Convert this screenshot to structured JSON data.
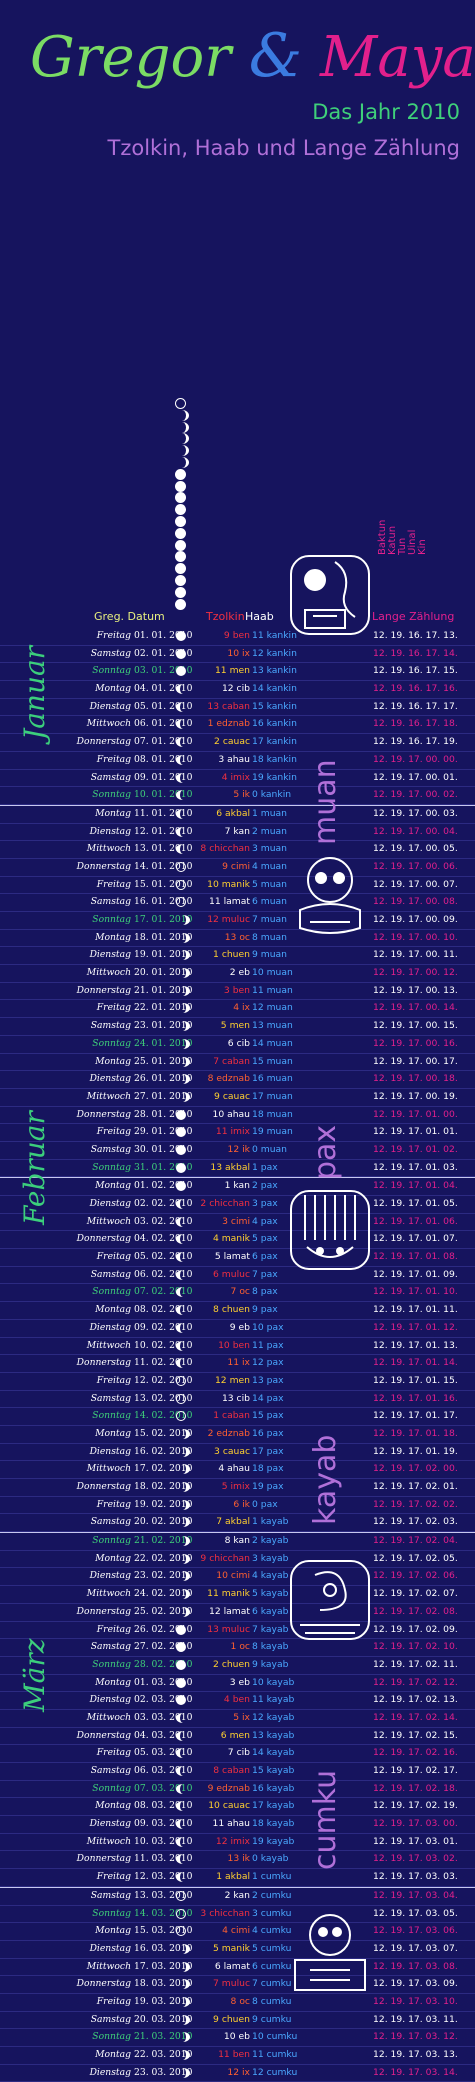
{
  "header": {
    "name1": "Gregor",
    "amp": "&",
    "name2": "Maya",
    "subtitle1": "Das Jahr 2010",
    "subtitle2": "Tzolkin, Haab und Lange Zählung"
  },
  "columns": {
    "greg": "Greg. Datum",
    "tzolkin": "Tzolkin",
    "haab": "Haab",
    "long_count": "Lange Zählung"
  },
  "long_count_units": [
    "Baktun",
    "Katun",
    "Tun",
    "Uinal",
    "Kin"
  ],
  "months": [
    "Januar",
    "Februar",
    "März"
  ],
  "haab_months": [
    "muan",
    "pax",
    "kayab",
    "cumku"
  ],
  "colors": {
    "background": "#16145e",
    "gregor": "#7bdc64",
    "maya": "#e2208c",
    "amp": "#3b7be0",
    "sunday": "#3fd07a",
    "long_count": "#e2208c",
    "haab_word": "#b070d8"
  },
  "rows": [
    {
      "wd": "Freitag",
      "dt": "01. 01. 2010",
      "tz": "9 ben",
      "hb": "11 kankin",
      "lc": "12. 19. 16. 17. 13."
    },
    {
      "wd": "Samstag",
      "dt": "02. 01. 2010",
      "tz": "10 ix",
      "hb": "12 kankin",
      "lc": "12. 19. 16. 17. 14."
    },
    {
      "wd": "Sonntag",
      "dt": "03. 01. 2010",
      "tz": "11 men",
      "hb": "13 kankin",
      "lc": "12. 19. 16. 17. 15."
    },
    {
      "wd": "Montag",
      "dt": "04. 01. 2010",
      "tz": "12 cib",
      "hb": "14 kankin",
      "lc": "12. 19. 16. 17. 16."
    },
    {
      "wd": "Dienstag",
      "dt": "05. 01. 2010",
      "tz": "13 caban",
      "hb": "15 kankin",
      "lc": "12. 19. 16. 17. 17."
    },
    {
      "wd": "Mittwoch",
      "dt": "06. 01. 2010",
      "tz": "1 edznab",
      "hb": "16 kankin",
      "lc": "12. 19. 16. 17. 18."
    },
    {
      "wd": "Donnerstag",
      "dt": "07. 01. 2010",
      "tz": "2 cauac",
      "hb": "17 kankin",
      "lc": "12. 19. 16. 17. 19."
    },
    {
      "wd": "Freitag",
      "dt": "08. 01. 2010",
      "tz": "3 ahau",
      "hb": "18 kankin",
      "lc": "12. 19. 17. 00. 00."
    },
    {
      "wd": "Samstag",
      "dt": "09. 01. 2010",
      "tz": "4 imix",
      "hb": "19 kankin",
      "lc": "12. 19. 17. 00. 01."
    },
    {
      "wd": "Sonntag",
      "dt": "10. 01. 2010",
      "tz": "5 ik",
      "hb": "0 kankin",
      "lc": "12. 19. 17. 00. 02."
    },
    {
      "wd": "Montag",
      "dt": "11. 01. 2010",
      "tz": "6 akbal",
      "hb": "1 muan",
      "lc": "12. 19. 17. 00. 03."
    },
    {
      "wd": "Dienstag",
      "dt": "12. 01. 2010",
      "tz": "7 kan",
      "hb": "2 muan",
      "lc": "12. 19. 17. 00. 04."
    },
    {
      "wd": "Mittwoch",
      "dt": "13. 01. 2010",
      "tz": "8 chicchan",
      "hb": "3 muan",
      "lc": "12. 19. 17. 00. 05."
    },
    {
      "wd": "Donnerstag",
      "dt": "14. 01. 2010",
      "tz": "9 cimi",
      "hb": "4 muan",
      "lc": "12. 19. 17. 00. 06."
    },
    {
      "wd": "Freitag",
      "dt": "15. 01. 2010",
      "tz": "10 manik",
      "hb": "5 muan",
      "lc": "12. 19. 17. 00. 07."
    },
    {
      "wd": "Samstag",
      "dt": "16. 01. 2010",
      "tz": "11 lamat",
      "hb": "6 muan",
      "lc": "12. 19. 17. 00. 08."
    },
    {
      "wd": "Sonntag",
      "dt": "17. 01. 2010",
      "tz": "12 muluc",
      "hb": "7 muan",
      "lc": "12. 19. 17. 00. 09."
    },
    {
      "wd": "Montag",
      "dt": "18. 01. 2010",
      "tz": "13 oc",
      "hb": "8 muan",
      "lc": "12. 19. 17. 00. 10."
    },
    {
      "wd": "Dienstag",
      "dt": "19. 01. 2010",
      "tz": "1 chuen",
      "hb": "9 muan",
      "lc": "12. 19. 17. 00. 11."
    },
    {
      "wd": "Mittwoch",
      "dt": "20. 01. 2010",
      "tz": "2 eb",
      "hb": "10 muan",
      "lc": "12. 19. 17. 00. 12."
    },
    {
      "wd": "Donnerstag",
      "dt": "21. 01. 2010",
      "tz": "3 ben",
      "hb": "11 muan",
      "lc": "12. 19. 17. 00. 13."
    },
    {
      "wd": "Freitag",
      "dt": "22. 01. 2010",
      "tz": "4 ix",
      "hb": "12 muan",
      "lc": "12. 19. 17. 00. 14."
    },
    {
      "wd": "Samstag",
      "dt": "23. 01. 2010",
      "tz": "5 men",
      "hb": "13 muan",
      "lc": "12. 19. 17. 00. 15."
    },
    {
      "wd": "Sonntag",
      "dt": "24. 01. 2010",
      "tz": "6 cib",
      "hb": "14 muan",
      "lc": "12. 19. 17. 00. 16."
    },
    {
      "wd": "Montag",
      "dt": "25. 01. 2010",
      "tz": "7 caban",
      "hb": "15 muan",
      "lc": "12. 19. 17. 00. 17."
    },
    {
      "wd": "Dienstag",
      "dt": "26. 01. 2010",
      "tz": "8 edznab",
      "hb": "16 muan",
      "lc": "12. 19. 17. 00. 18."
    },
    {
      "wd": "Mittwoch",
      "dt": "27. 01. 2010",
      "tz": "9 cauac",
      "hb": "17 muan",
      "lc": "12. 19. 17. 00. 19."
    },
    {
      "wd": "Donnerstag",
      "dt": "28. 01. 2010",
      "tz": "10 ahau",
      "hb": "18 muan",
      "lc": "12. 19. 17. 01. 00."
    },
    {
      "wd": "Freitag",
      "dt": "29. 01. 2010",
      "tz": "11 imix",
      "hb": "19 muan",
      "lc": "12. 19. 17. 01. 01."
    },
    {
      "wd": "Samstag",
      "dt": "30. 01. 2010",
      "tz": "12 ik",
      "hb": "0 muan",
      "lc": "12. 19. 17. 01. 02."
    },
    {
      "wd": "Sonntag",
      "dt": "31. 01. 2010",
      "tz": "13 akbal",
      "hb": "1 pax",
      "lc": "12. 19. 17. 01. 03."
    },
    {
      "wd": "Montag",
      "dt": "01. 02. 2010",
      "tz": "1 kan",
      "hb": "2 pax",
      "lc": "12. 19. 17. 01. 04."
    },
    {
      "wd": "Dienstag",
      "dt": "02. 02. 2010",
      "tz": "2 chicchan",
      "hb": "3 pax",
      "lc": "12. 19. 17. 01. 05."
    },
    {
      "wd": "Mittwoch",
      "dt": "03. 02. 2010",
      "tz": "3 cimi",
      "hb": "4 pax",
      "lc": "12. 19. 17. 01. 06."
    },
    {
      "wd": "Donnerstag",
      "dt": "04. 02. 2010",
      "tz": "4 manik",
      "hb": "5 pax",
      "lc": "12. 19. 17. 01. 07."
    },
    {
      "wd": "Freitag",
      "dt": "05. 02. 2010",
      "tz": "5 lamat",
      "hb": "6 pax",
      "lc": "12. 19. 17. 01. 08."
    },
    {
      "wd": "Samstag",
      "dt": "06. 02. 2010",
      "tz": "6 muluc",
      "hb": "7 pax",
      "lc": "12. 19. 17. 01. 09."
    },
    {
      "wd": "Sonntag",
      "dt": "07. 02. 2010",
      "tz": "7 oc",
      "hb": "8 pax",
      "lc": "12. 19. 17. 01. 10."
    },
    {
      "wd": "Montag",
      "dt": "08. 02. 2010",
      "tz": "8 chuen",
      "hb": "9 pax",
      "lc": "12. 19. 17. 01. 11."
    },
    {
      "wd": "Dienstag",
      "dt": "09. 02. 2010",
      "tz": "9 eb",
      "hb": "10 pax",
      "lc": "12. 19. 17. 01. 12."
    },
    {
      "wd": "Mittwoch",
      "dt": "10. 02. 2010",
      "tz": "10 ben",
      "hb": "11 pax",
      "lc": "12. 19. 17. 01. 13."
    },
    {
      "wd": "Donnerstag",
      "dt": "11. 02. 2010",
      "tz": "11 ix",
      "hb": "12 pax",
      "lc": "12. 19. 17. 01. 14."
    },
    {
      "wd": "Freitag",
      "dt": "12. 02. 2010",
      "tz": "12 men",
      "hb": "13 pax",
      "lc": "12. 19. 17. 01. 15."
    },
    {
      "wd": "Samstag",
      "dt": "13. 02. 2010",
      "tz": "13 cib",
      "hb": "14 pax",
      "lc": "12. 19. 17. 01. 16."
    },
    {
      "wd": "Sonntag",
      "dt": "14. 02. 2010",
      "tz": "1 caban",
      "hb": "15 pax",
      "lc": "12. 19. 17. 01. 17."
    },
    {
      "wd": "Montag",
      "dt": "15. 02. 2010",
      "tz": "2 edznab",
      "hb": "16 pax",
      "lc": "12. 19. 17. 01. 18."
    },
    {
      "wd": "Dienstag",
      "dt": "16. 02. 2010",
      "tz": "3 cauac",
      "hb": "17 pax",
      "lc": "12. 19. 17. 01. 19."
    },
    {
      "wd": "Mittwoch",
      "dt": "17. 02. 2010",
      "tz": "4 ahau",
      "hb": "18 pax",
      "lc": "12. 19. 17. 02. 00."
    },
    {
      "wd": "Donnerstag",
      "dt": "18. 02. 2010",
      "tz": "5 imix",
      "hb": "19 pax",
      "lc": "12. 19. 17. 02. 01."
    },
    {
      "wd": "Freitag",
      "dt": "19. 02. 2010",
      "tz": "6 ik",
      "hb": "0 pax",
      "lc": "12. 19. 17. 02. 02."
    },
    {
      "wd": "Samstag",
      "dt": "20. 02. 2010",
      "tz": "7 akbal",
      "hb": "1 kayab",
      "lc": "12. 19. 17. 02. 03."
    },
    {
      "wd": "Sonntag",
      "dt": "21. 02. 2010",
      "tz": "8 kan",
      "hb": "2 kayab",
      "lc": "12. 19. 17. 02. 04."
    },
    {
      "wd": "Montag",
      "dt": "22. 02. 2010",
      "tz": "9 chicchan",
      "hb": "3 kayab",
      "lc": "12. 19. 17. 02. 05."
    },
    {
      "wd": "Dienstag",
      "dt": "23. 02. 2010",
      "tz": "10 cimi",
      "hb": "4 kayab",
      "lc": "12. 19. 17. 02. 06."
    },
    {
      "wd": "Mittwoch",
      "dt": "24. 02. 2010",
      "tz": "11 manik",
      "hb": "5 kayab",
      "lc": "12. 19. 17. 02. 07."
    },
    {
      "wd": "Donnerstag",
      "dt": "25. 02. 2010",
      "tz": "12 lamat",
      "hb": "6 kayab",
      "lc": "12. 19. 17. 02. 08."
    },
    {
      "wd": "Freitag",
      "dt": "26. 02. 2010",
      "tz": "13 muluc",
      "hb": "7 kayab",
      "lc": "12. 19. 17. 02. 09."
    },
    {
      "wd": "Samstag",
      "dt": "27. 02. 2010",
      "tz": "1 oc",
      "hb": "8 kayab",
      "lc": "12. 19. 17. 02. 10."
    },
    {
      "wd": "Sonntag",
      "dt": "28. 02. 2010",
      "tz": "2 chuen",
      "hb": "9 kayab",
      "lc": "12. 19. 17. 02. 11."
    },
    {
      "wd": "Montag",
      "dt": "01. 03. 2010",
      "tz": "3 eb",
      "hb": "10 kayab",
      "lc": "12. 19. 17. 02. 12."
    },
    {
      "wd": "Dienstag",
      "dt": "02. 03. 2010",
      "tz": "4 ben",
      "hb": "11 kayab",
      "lc": "12. 19. 17. 02. 13."
    },
    {
      "wd": "Mittwoch",
      "dt": "03. 03. 2010",
      "tz": "5 ix",
      "hb": "12 kayab",
      "lc": "12. 19. 17. 02. 14."
    },
    {
      "wd": "Donnerstag",
      "dt": "04. 03. 2010",
      "tz": "6 men",
      "hb": "13 kayab",
      "lc": "12. 19. 17. 02. 15."
    },
    {
      "wd": "Freitag",
      "dt": "05. 03. 2010",
      "tz": "7 cib",
      "hb": "14 kayab",
      "lc": "12. 19. 17. 02. 16."
    },
    {
      "wd": "Samstag",
      "dt": "06. 03. 2010",
      "tz": "8 caban",
      "hb": "15 kayab",
      "lc": "12. 19. 17. 02. 17."
    },
    {
      "wd": "Sonntag",
      "dt": "07. 03. 2010",
      "tz": "9 edznab",
      "hb": "16 kayab",
      "lc": "12. 19. 17. 02. 18."
    },
    {
      "wd": "Montag",
      "dt": "08. 03. 2010",
      "tz": "10 cauac",
      "hb": "17 kayab",
      "lc": "12. 19. 17. 02. 19."
    },
    {
      "wd": "Dienstag",
      "dt": "09. 03. 2010",
      "tz": "11 ahau",
      "hb": "18 kayab",
      "lc": "12. 19. 17. 03. 00."
    },
    {
      "wd": "Mittwoch",
      "dt": "10. 03. 2010",
      "tz": "12 imix",
      "hb": "19 kayab",
      "lc": "12. 19. 17. 03. 01."
    },
    {
      "wd": "Donnerstag",
      "dt": "11. 03. 2010",
      "tz": "13 ik",
      "hb": "0 kayab",
      "lc": "12. 19. 17. 03. 02."
    },
    {
      "wd": "Freitag",
      "dt": "12. 03. 2010",
      "tz": "1 akbal",
      "hb": "1 cumku",
      "lc": "12. 19. 17. 03. 03."
    },
    {
      "wd": "Samstag",
      "dt": "13. 03. 2010",
      "tz": "2 kan",
      "hb": "2 cumku",
      "lc": "12. 19. 17. 03. 04."
    },
    {
      "wd": "Sonntag",
      "dt": "14. 03. 2010",
      "tz": "3 chicchan",
      "hb": "3 cumku",
      "lc": "12. 19. 17. 03. 05."
    },
    {
      "wd": "Montag",
      "dt": "15. 03. 2010",
      "tz": "4 cimi",
      "hb": "4 cumku",
      "lc": "12. 19. 17. 03. 06."
    },
    {
      "wd": "Dienstag",
      "dt": "16. 03. 2010",
      "tz": "5 manik",
      "hb": "5 cumku",
      "lc": "12. 19. 17. 03. 07."
    },
    {
      "wd": "Mittwoch",
      "dt": "17. 03. 2010",
      "tz": "6 lamat",
      "hb": "6 cumku",
      "lc": "12. 19. 17. 03. 08."
    },
    {
      "wd": "Donnerstag",
      "dt": "18. 03. 2010",
      "tz": "7 muluc",
      "hb": "7 cumku",
      "lc": "12. 19. 17. 03. 09."
    },
    {
      "wd": "Freitag",
      "dt": "19. 03. 2010",
      "tz": "8 oc",
      "hb": "8 cumku",
      "lc": "12. 19. 17. 03. 10."
    },
    {
      "wd": "Samstag",
      "dt": "20. 03. 2010",
      "tz": "9 chuen",
      "hb": "9 cumku",
      "lc": "12. 19. 17. 03. 11."
    },
    {
      "wd": "Sonntag",
      "dt": "21. 03. 2010",
      "tz": "10 eb",
      "hb": "10 cumku",
      "lc": "12. 19. 17. 03. 12."
    },
    {
      "wd": "Montag",
      "dt": "22. 03. 2010",
      "tz": "11 ben",
      "hb": "11 cumku",
      "lc": "12. 19. 17. 03. 13."
    },
    {
      "wd": "Dienstag",
      "dt": "23. 03. 2010",
      "tz": "12 ix",
      "hb": "12 cumku",
      "lc": "12. 19. 17. 03. 14."
    }
  ]
}
